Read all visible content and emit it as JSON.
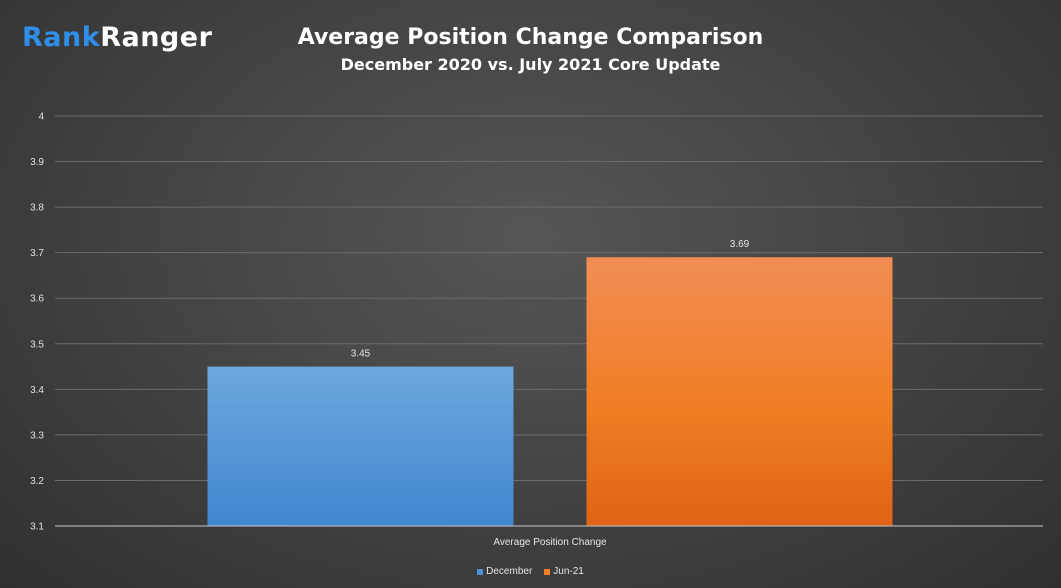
{
  "logo": {
    "part1": "Rank",
    "part2": "Ranger"
  },
  "colors": {
    "december": "#4a90d9",
    "jun21": "#f07f2a"
  },
  "chart_data": {
    "type": "bar",
    "title": "Average Position Change Comparison",
    "subtitle": "December 2020 vs. July 2021 Core Update",
    "categories": [
      "Average Position Change"
    ],
    "series": [
      {
        "name": "December",
        "values": [
          3.45
        ]
      },
      {
        "name": "Jun-21",
        "values": [
          3.69
        ]
      }
    ],
    "ylim": [
      3.1,
      4
    ],
    "yticks": [
      "3.1",
      "3.2",
      "3.3",
      "3.4",
      "3.5",
      "3.6",
      "3.7",
      "3.8",
      "3.9",
      "4"
    ],
    "data_labels": [
      "3.45",
      "3.69"
    ],
    "grid": true,
    "legend": "bottom"
  }
}
